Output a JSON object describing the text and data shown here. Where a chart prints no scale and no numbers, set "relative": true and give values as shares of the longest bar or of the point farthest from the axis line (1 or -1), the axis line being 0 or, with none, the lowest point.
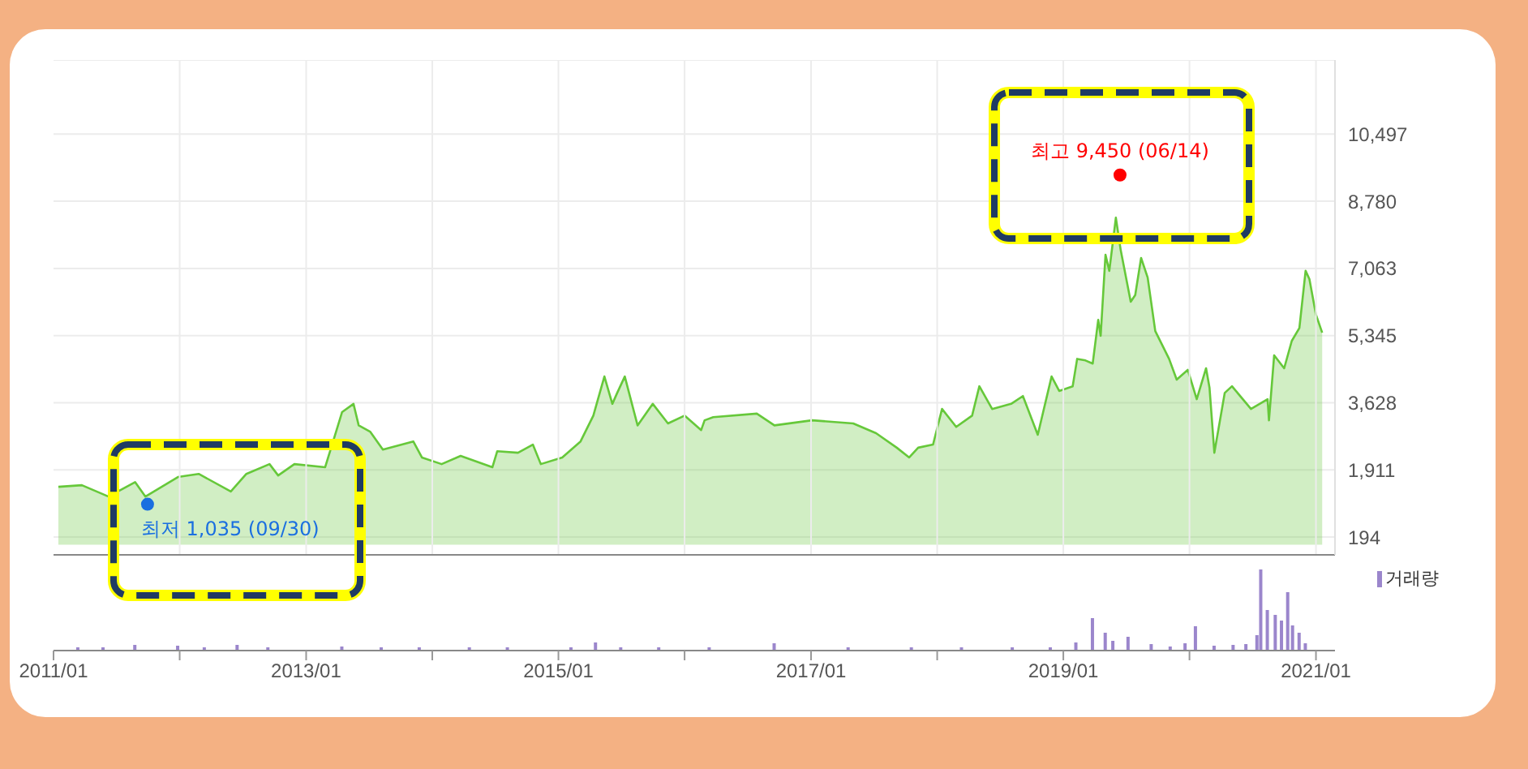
{
  "chart_data": [
    {
      "type": "area",
      "series": [
        {
          "color": "#66c83a",
          "x": [
            "2011-01-15",
            "2011-03-24",
            "2011-06-09",
            "2011-08-25",
            "2011-09-24",
            "2011-12-27",
            "2012-02-25",
            "2012-05-28",
            "2012-07-12",
            "2012-09-17",
            "2012-10-12",
            "2012-11-28",
            "2013-02-25",
            "2013-03-20",
            "2013-04-15",
            "2013-05-18",
            "2013-06-02",
            "2013-07-05",
            "2013-08-11",
            "2013-11-07",
            "2013-12-02",
            "2014-01-28",
            "2014-03-24",
            "2014-06-24",
            "2014-07-08",
            "2014-09-06",
            "2014-10-19",
            "2014-11-11",
            "2015-01-12",
            "2015-03-06",
            "2015-04-12",
            "2015-05-14",
            "2015-06-06",
            "2015-06-20",
            "2015-07-12",
            "2015-08-18",
            "2015-10-01",
            "2015-11-14",
            "2016-01-01",
            "2016-02-18",
            "2016-02-28",
            "2016-03-24",
            "2016-07-28",
            "2016-09-17",
            "2017-01-04",
            "2017-05-03",
            "2017-07-08",
            "2017-09-06",
            "2017-10-12",
            "2017-11-07",
            "2017-12-20",
            "2018-01-15",
            "2018-02-25",
            "2018-04-12",
            "2018-05-03",
            "2018-06-09",
            "2018-08-03",
            "2018-09-06",
            "2018-10-19",
            "2018-11-28",
            "2018-12-20",
            "2019-01-28",
            "2019-02-10",
            "2019-03-06",
            "2019-03-27",
            "2019-04-12",
            "2019-04-19",
            "2019-05-03",
            "2019-05-14",
            "2019-06-02",
            "2019-06-16",
            "2019-07-15",
            "2019-07-28",
            "2019-08-14",
            "2019-09-02",
            "2019-09-24",
            "2019-11-03",
            "2019-11-25",
            "2019-12-27",
            "2020-01-22",
            "2020-02-18",
            "2020-02-28",
            "2020-03-13",
            "2020-04-12",
            "2020-05-03",
            "2020-06-27",
            "2020-08-14",
            "2020-08-18",
            "2020-09-02",
            "2020-10-01",
            "2020-10-23",
            "2020-11-14",
            "2020-12-02",
            "2020-12-13",
            "2021-01-01",
            "2021-01-19"
          ],
          "values": [
            1480,
            1520,
            1230,
            1600,
            1230,
            1730,
            1810,
            1360,
            1810,
            2060,
            1770,
            2060,
            1980,
            2640,
            3390,
            3600,
            3050,
            2890,
            2430,
            2640,
            2230,
            2060,
            2270,
            1980,
            2390,
            2350,
            2560,
            2060,
            2230,
            2640,
            3300,
            4300,
            3600,
            3880,
            4300,
            3050,
            3600,
            3100,
            3300,
            2930,
            3180,
            3260,
            3350,
            3050,
            3180,
            3100,
            2850,
            2480,
            2230,
            2480,
            2560,
            3470,
            3010,
            3300,
            4050,
            3470,
            3600,
            3800,
            2810,
            4300,
            3930,
            4050,
            4750,
            4710,
            4630,
            5750,
            5340,
            7410,
            7000,
            8360,
            7530,
            6210,
            6380,
            7330,
            6830,
            5460,
            4750,
            4220,
            4470,
            3720,
            4510,
            4010,
            2350,
            3880,
            4050,
            3470,
            3720,
            3180,
            4840,
            4510,
            5210,
            5540,
            7000,
            6790,
            5880,
            5420
          ]
        }
      ],
      "xlim": [
        "2011-01-01",
        "2021-02-25"
      ],
      "xticks": [
        "2012-01-01",
        "2013-01-01",
        "2014-01-01",
        "2015-01-01",
        "2016-01-01",
        "2017-01-01",
        "2018-01-01",
        "2019-01-01",
        "2020-01-01",
        "2021-01-01"
      ],
      "ylim": [
        -260,
        12390
      ],
      "yticks": [
        194,
        {
          "value": 1911,
          "label": "1,911"
        },
        {
          "value": 3628,
          "label": "3,628"
        },
        {
          "value": 5345,
          "label": "5,345"
        },
        {
          "value": 7063,
          "label": "7,063"
        },
        {
          "value": 8780,
          "label": "8,780"
        },
        {
          "value": 10497,
          "label": "10,497"
        }
      ],
      "grid": true,
      "tick_labels": "y",
      "annotations": [
        {
          "text": "최저 1,035 (09/30)",
          "x": "2011-09-30",
          "y": 1035
        },
        {
          "text": "최고 9,450 (06/14)",
          "x": "2019-06-14",
          "y": 9450
        }
      ]
    },
    {
      "type": "bar",
      "relative": true,
      "x": [
        "2011-03-13",
        "2011-05-25",
        "2011-08-25",
        "2011-12-27",
        "2012-03-13",
        "2012-06-16",
        "2012-09-13",
        "2013-04-15",
        "2013-08-07",
        "2013-11-25",
        "2014-04-19",
        "2014-08-07",
        "2015-02-07",
        "2015-04-19",
        "2015-07-01",
        "2015-10-19",
        "2016-03-13",
        "2016-09-17",
        "2017-04-19",
        "2017-10-19",
        "2018-03-13",
        "2018-08-07",
        "2018-11-25",
        "2019-02-07",
        "2019-03-27",
        "2019-05-03",
        "2019-05-25",
        "2019-07-08",
        "2019-09-13",
        "2019-11-07",
        "2019-12-20",
        "2020-01-19",
        "2020-03-13",
        "2020-05-07",
        "2020-06-13",
        "2020-07-15",
        "2020-07-26",
        "2020-08-14",
        "2020-09-06",
        "2020-09-24",
        "2020-10-12",
        "2020-10-26",
        "2020-11-14",
        "2020-12-02"
      ],
      "series": [
        {
          "name": "거래량",
          "color": "#9b86cc",
          "values": [
            0.04,
            0.04,
            0.07,
            0.06,
            0.04,
            0.07,
            0.04,
            0.05,
            0.04,
            0.04,
            0.04,
            0.04,
            0.04,
            0.1,
            0.04,
            0.04,
            0.04,
            0.09,
            0.04,
            0.04,
            0.04,
            0.04,
            0.04,
            0.1,
            0.4,
            0.22,
            0.12,
            0.17,
            0.08,
            0.05,
            0.09,
            0.3,
            0.06,
            0.07,
            0.08,
            0.19,
            1,
            0.5,
            0.44,
            0.37,
            0.72,
            0.31,
            0.22,
            0.09
          ]
        }
      ],
      "xlim": [
        "2011-01-01",
        "2021-02-25"
      ],
      "xticks": [
        {
          "value": "2011-01-01",
          "label": "2011/01"
        },
        {
          "value": "2012-01-01",
          "label": null
        },
        {
          "value": "2013-01-01",
          "label": "2013/01"
        },
        {
          "value": "2014-01-01",
          "label": null
        },
        {
          "value": "2015-01-01",
          "label": "2015/01"
        },
        {
          "value": "2016-01-01",
          "label": null
        },
        {
          "value": "2017-01-01",
          "label": "2017/01"
        },
        {
          "value": "2018-01-01",
          "label": null
        },
        {
          "value": "2019-01-01",
          "label": "2019/01"
        },
        {
          "value": "2020-01-01",
          "label": null
        },
        {
          "value": "2021-01-01",
          "label": "2021/01"
        }
      ],
      "tick_labels": "x",
      "legend": "top right"
    }
  ]
}
